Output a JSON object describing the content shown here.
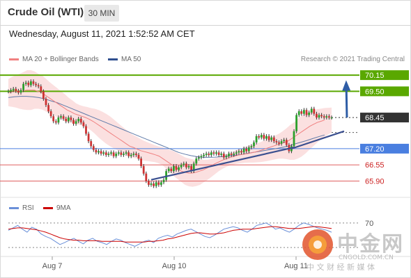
{
  "header": {
    "instrument": "Crude Oil (WTI)",
    "timeframe": "30 MIN",
    "datetime": "Wednesday, August 11, 2021 1:52:52 AM CET"
  },
  "legend": {
    "ma20_label": "MA 20 + Bollinger Bands",
    "ma20_color": "#f08080",
    "ma50_label": "MA 50",
    "ma50_color": "#2f4f8f",
    "credit": "Research © 2021 Trading Central"
  },
  "sub_legend": {
    "rsi_label": "RSI",
    "rsi_color": "#6a8fd8",
    "ma9_label": "9MA",
    "ma9_color": "#cc0000"
  },
  "watermark": {
    "brand": "中金网",
    "domain": "CNGOLD.COM.CN",
    "tagline": "中 文 财 经 新 媒 体"
  },
  "chart_data": [
    {
      "type": "candlestick",
      "instrument": "Crude Oil (WTI)",
      "timeframe": "30 MIN",
      "ylim": [
        65.3,
        70.6
      ],
      "x_ticks": [
        "Aug 7",
        "Aug 10",
        "Aug 11"
      ],
      "levels": [
        {
          "value": 70.15,
          "label": "70.15",
          "kind": "target",
          "color": "#5aa800"
        },
        {
          "value": 69.5,
          "label": "69.50",
          "kind": "resistance",
          "color": "#5aa800"
        },
        {
          "value": 68.45,
          "label": "68.45",
          "kind": "last",
          "color": "#333333"
        },
        {
          "value": 67.2,
          "label": "67.20",
          "kind": "pivot",
          "color": "#4a7fe0"
        },
        {
          "value": 66.55,
          "label": "66.55",
          "kind": "support",
          "color": "#e06060"
        },
        {
          "value": 65.9,
          "label": "65.90",
          "kind": "support",
          "color": "#e06060"
        }
      ],
      "close": [
        69.5,
        69.55,
        69.6,
        69.52,
        69.45,
        69.55,
        69.8,
        69.85,
        69.75,
        69.9,
        69.8,
        69.75,
        69.7,
        69.5,
        69.2,
        68.95,
        68.7,
        68.5,
        68.3,
        68.25,
        68.45,
        68.5,
        68.4,
        68.3,
        68.45,
        68.35,
        68.2,
        68.3,
        68.4,
        68.25,
        68.1,
        67.8,
        67.5,
        67.3,
        67.15,
        67.05,
        67.1,
        67.0,
        67.05,
        66.95,
        67.0,
        67.05,
        66.9,
        67.0,
        67.05,
        66.95,
        67.0,
        67.05,
        66.9,
        66.95,
        67.0,
        66.95,
        66.8,
        66.5,
        66.2,
        65.9,
        65.75,
        65.8,
        65.7,
        65.85,
        65.75,
        65.85,
        65.95,
        66.3,
        66.4,
        66.3,
        66.5,
        66.35,
        66.45,
        66.55,
        66.6,
        66.45,
        66.5,
        66.3,
        66.6,
        66.8,
        66.85,
        66.9,
        66.95,
        67.0,
        66.95,
        67.05,
        67.0,
        67.05,
        66.95,
        67.0,
        66.85,
        66.9,
        67.0,
        66.95,
        67.0,
        67.05,
        67.1,
        67.05,
        67.2,
        67.1,
        67.25,
        67.3,
        67.45,
        67.7,
        67.65,
        67.75,
        67.6,
        67.7,
        67.55,
        67.65,
        67.5,
        67.45,
        67.4,
        67.5,
        67.55,
        67.35,
        67.1,
        67.3,
        67.9,
        68.55,
        68.7,
        68.6,
        68.75,
        68.55,
        68.65,
        68.8,
        68.6,
        68.45,
        68.55,
        68.5,
        68.45,
        68.5,
        68.45,
        68.45
      ],
      "ma20": [
        69.45,
        69.48,
        69.5,
        69.5,
        69.52,
        69.55,
        69.55,
        69.55,
        69.5,
        69.45,
        69.35,
        69.25,
        69.15,
        69.05,
        68.95,
        68.85,
        68.75,
        68.68,
        68.6,
        68.55,
        68.5,
        68.45,
        68.38,
        68.3,
        68.2,
        68.1,
        68.0,
        67.9,
        67.8,
        67.7,
        67.6,
        67.5,
        67.4,
        67.3,
        67.25,
        67.18,
        67.12,
        67.08,
        67.04,
        67.0,
        66.95,
        66.9,
        66.8,
        66.7,
        66.6,
        66.5,
        66.4,
        66.3,
        66.25,
        66.22,
        66.22,
        66.25,
        66.3,
        66.35,
        66.42,
        66.5,
        66.58,
        66.65,
        66.72,
        66.78,
        66.83,
        66.88,
        66.92,
        66.95,
        66.98,
        67.0,
        67.03,
        67.06,
        67.1,
        67.15,
        67.2,
        67.25,
        67.3,
        67.35,
        67.4,
        67.45,
        67.5,
        67.6,
        67.7,
        67.8,
        67.9,
        68.0,
        68.1,
        68.18,
        68.25,
        68.3,
        68.35
      ],
      "ma50": [
        69.25,
        69.28,
        69.3,
        69.3,
        69.28,
        69.25,
        69.2,
        69.12,
        69.05,
        68.95,
        68.85,
        68.75,
        68.65,
        68.55,
        68.45,
        68.35,
        68.25,
        68.15,
        68.05,
        67.95,
        67.85,
        67.75,
        67.65,
        67.55,
        67.45,
        67.35,
        67.25,
        67.15,
        67.05,
        66.98,
        66.92,
        66.88,
        66.85,
        66.85,
        66.86,
        66.88,
        66.9,
        66.93,
        66.96,
        67.0,
        67.04,
        67.08,
        67.12,
        67.16,
        67.2,
        67.25,
        67.3,
        67.38,
        67.45,
        67.52,
        67.6,
        67.68,
        67.75
      ],
      "trendlines": [
        {
          "from": [
            57,
            65.95
          ],
          "to": [
            114,
            67.25
          ]
        },
        {
          "from": [
            113,
            67.2
          ],
          "to": [
            134,
            67.9
          ]
        }
      ],
      "forecast_arrow": {
        "from": [
          134,
          68.45
        ],
        "to": [
          145,
          70.0
        ]
      }
    },
    {
      "type": "line",
      "panel": "RSI",
      "ylim": [
        20,
        80
      ],
      "y_ticks": [
        70
      ],
      "series": [
        {
          "name": "RSI",
          "color": "#6a8fd8",
          "values": [
            58,
            62,
            66,
            60,
            55,
            63,
            60,
            52,
            48,
            45,
            40,
            35,
            38,
            42,
            45,
            40,
            36,
            42,
            45,
            40,
            38,
            35,
            40,
            44,
            42,
            38,
            35,
            32,
            36,
            40,
            42,
            38,
            45,
            48,
            50,
            47,
            52,
            55,
            58,
            60,
            56,
            52,
            48,
            46,
            50,
            55,
            60,
            62,
            64,
            62,
            58,
            55,
            60,
            66,
            68,
            70,
            66,
            60,
            62,
            58,
            55,
            60,
            66,
            70,
            68,
            65,
            62,
            60,
            58,
            55
          ]
        },
        {
          "name": "9MA",
          "color": "#cc0000",
          "values": [
            60,
            61,
            62,
            62,
            61,
            60,
            59,
            57,
            55,
            52,
            49,
            46,
            44,
            43,
            42,
            42,
            41,
            41,
            41,
            41,
            40,
            40,
            40,
            40,
            40,
            39,
            39,
            39,
            39,
            39,
            40,
            40,
            41,
            42,
            44,
            45,
            47,
            49,
            51,
            53,
            54,
            54,
            53,
            52,
            52,
            53,
            54,
            56,
            58,
            59,
            60,
            60,
            60,
            61,
            62,
            63,
            64,
            64,
            63,
            62,
            61,
            61,
            61,
            62,
            63,
            64,
            64,
            63,
            62,
            61
          ]
        }
      ]
    }
  ]
}
